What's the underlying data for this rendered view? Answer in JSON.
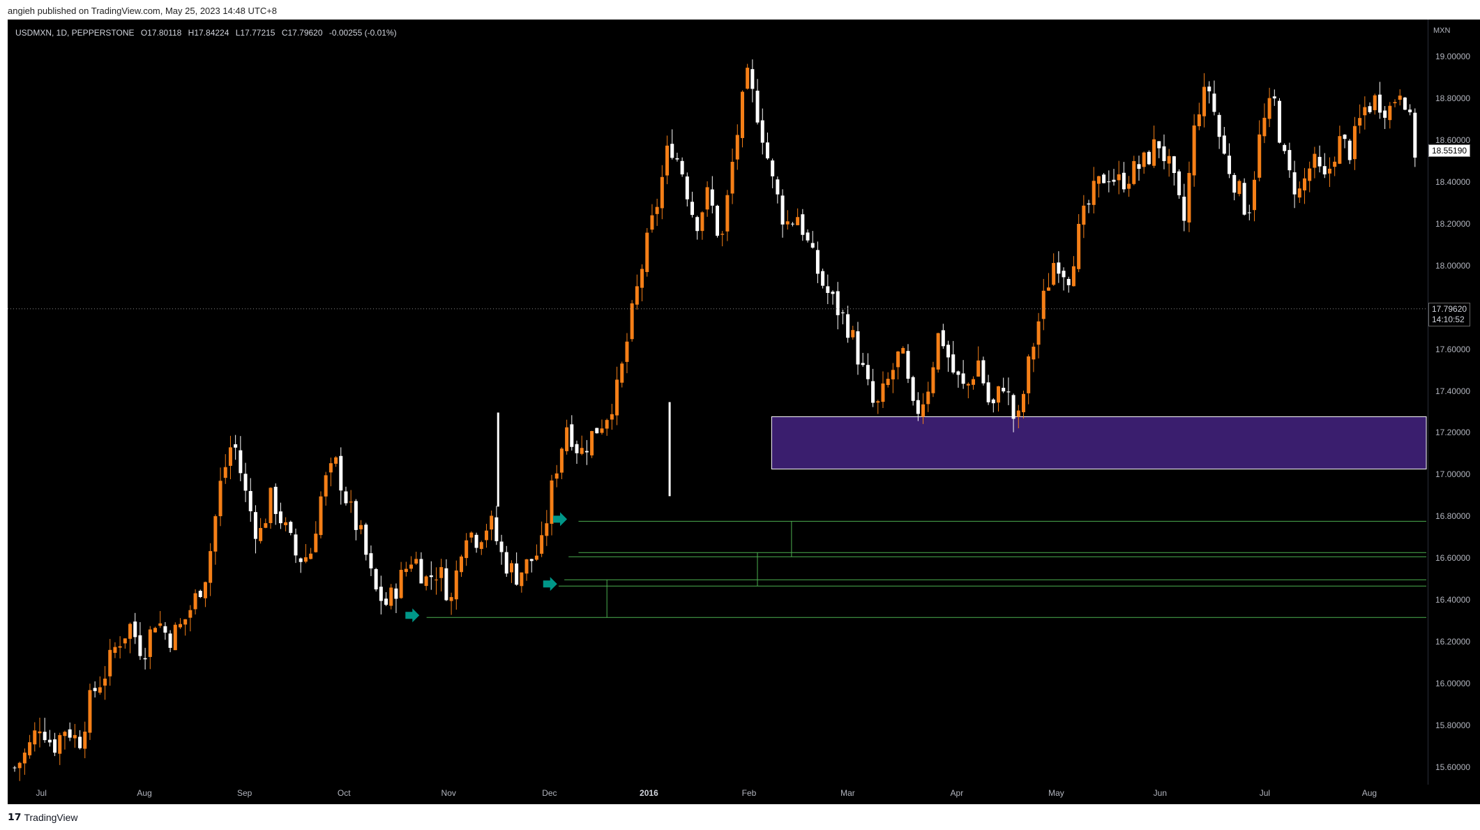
{
  "published": "angieh published on TradingView.com, May 25, 2023 14:48 UTC+8",
  "legend": {
    "symbol": "USDMXN, 1D, PEPPERSTONE",
    "open": "O17.80118",
    "high": "H17.84224",
    "low": "L17.77215",
    "close": "C17.79620",
    "change": "-0.00255 (-0.01%)"
  },
  "currency": "MXN",
  "last_price_tag": "18.55190",
  "current_price_tag": {
    "price": "17.79620",
    "countdown": "14:10:52"
  },
  "footer": {
    "logo_icon": "tradingview-logo-icon",
    "brand": "TradingView"
  },
  "colors": {
    "background": "#000000",
    "up_candle": "#f57f17",
    "down_candle": "#ffffff",
    "zone": "#3a1e6e",
    "zone_border": "#ffffff",
    "level_lines": "#4caf50",
    "arrows": "#009688"
  },
  "chart_data": {
    "type": "candlestick",
    "symbol": "USDMXN",
    "timeframe": "1D",
    "y_axis": {
      "ticks": [
        "19.00000",
        "18.80000",
        "18.60000",
        "18.40000",
        "18.20000",
        "18.00000",
        "17.60000",
        "17.40000",
        "17.20000",
        "17.00000",
        "16.80000",
        "16.60000",
        "16.40000",
        "16.20000",
        "16.00000",
        "15.80000",
        "15.60000"
      ],
      "ylim": [
        15.52,
        19.18
      ]
    },
    "x_axis": {
      "ticks": [
        "Jul",
        "Aug",
        "Sep",
        "Oct",
        "Nov",
        "Dec",
        "2016",
        "Feb",
        "Mar",
        "Apr",
        "May",
        "Jun",
        "Jul",
        "Aug"
      ],
      "bold_tick": "2016"
    },
    "close_path": [
      [
        0,
        15.6
      ],
      [
        10,
        15.68
      ],
      [
        20,
        15.82
      ],
      [
        30,
        15.7
      ],
      [
        40,
        15.8
      ],
      [
        50,
        15.72
      ],
      [
        60,
        15.95
      ],
      [
        70,
        16.05
      ],
      [
        80,
        16.2
      ],
      [
        90,
        16.28
      ],
      [
        100,
        16.15
      ],
      [
        110,
        16.32
      ],
      [
        120,
        16.22
      ],
      [
        130,
        16.28
      ],
      [
        140,
        16.4
      ],
      [
        150,
        16.55
      ],
      [
        160,
        16.95
      ],
      [
        170,
        17.18
      ],
      [
        180,
        16.9
      ],
      [
        190,
        16.7
      ],
      [
        200,
        16.9
      ],
      [
        210,
        16.75
      ],
      [
        220,
        16.6
      ],
      [
        230,
        16.62
      ],
      [
        240,
        16.95
      ],
      [
        250,
        17.05
      ],
      [
        260,
        16.85
      ],
      [
        270,
        16.7
      ],
      [
        280,
        16.45
      ],
      [
        290,
        16.38
      ],
      [
        300,
        16.5
      ],
      [
        310,
        16.62
      ],
      [
        320,
        16.5
      ],
      [
        330,
        16.55
      ],
      [
        340,
        16.4
      ],
      [
        350,
        16.75
      ],
      [
        360,
        16.7
      ],
      [
        370,
        16.78
      ],
      [
        380,
        16.6
      ],
      [
        390,
        16.52
      ],
      [
        400,
        16.58
      ],
      [
        410,
        16.65
      ],
      [
        420,
        17.0
      ],
      [
        430,
        17.25
      ],
      [
        440,
        17.1
      ],
      [
        450,
        17.2
      ],
      [
        460,
        17.28
      ],
      [
        470,
        17.42
      ],
      [
        480,
        17.75
      ],
      [
        490,
        18.05
      ],
      [
        500,
        18.3
      ],
      [
        510,
        18.6
      ],
      [
        520,
        18.45
      ],
      [
        530,
        18.2
      ],
      [
        540,
        18.35
      ],
      [
        550,
        18.1
      ],
      [
        560,
        18.55
      ],
      [
        570,
        18.9
      ],
      [
        580,
        18.7
      ],
      [
        590,
        18.4
      ],
      [
        600,
        18.2
      ],
      [
        610,
        18.25
      ],
      [
        620,
        18.05
      ],
      [
        630,
        17.9
      ],
      [
        640,
        17.8
      ],
      [
        650,
        17.7
      ],
      [
        660,
        17.5
      ],
      [
        670,
        17.3
      ],
      [
        680,
        17.45
      ],
      [
        690,
        17.6
      ],
      [
        700,
        17.28
      ],
      [
        710,
        17.4
      ],
      [
        720,
        17.7
      ],
      [
        730,
        17.5
      ],
      [
        740,
        17.4
      ],
      [
        750,
        17.55
      ],
      [
        760,
        17.3
      ],
      [
        770,
        17.45
      ],
      [
        780,
        17.22
      ],
      [
        790,
        17.55
      ],
      [
        800,
        17.82
      ],
      [
        810,
        18.05
      ],
      [
        820,
        17.95
      ],
      [
        830,
        18.2
      ],
      [
        840,
        18.35
      ],
      [
        850,
        18.45
      ],
      [
        860,
        18.4
      ],
      [
        870,
        18.45
      ],
      [
        880,
        18.5
      ],
      [
        890,
        18.6
      ],
      [
        900,
        18.45
      ],
      [
        910,
        18.2
      ],
      [
        920,
        18.75
      ],
      [
        930,
        18.85
      ],
      [
        940,
        18.55
      ],
      [
        950,
        18.4
      ],
      [
        960,
        18.25
      ],
      [
        970,
        18.65
      ],
      [
        980,
        18.8
      ],
      [
        990,
        18.45
      ],
      [
        1000,
        18.35
      ],
      [
        1010,
        18.5
      ],
      [
        1020,
        18.4
      ],
      [
        1030,
        18.6
      ],
      [
        1040,
        18.55
      ],
      [
        1050,
        18.75
      ],
      [
        1060,
        18.8
      ],
      [
        1070,
        18.75
      ],
      [
        1080,
        18.88
      ],
      [
        1090,
        18.55
      ]
    ],
    "highs": [
      {
        "x": 1175,
        "price": 19.2
      },
      {
        "x": 1830,
        "price": 19.2
      },
      {
        "x": 1195,
        "price": 18.95
      },
      {
        "x": 508,
        "price": 17.35
      },
      {
        "x": 375,
        "price": 17.3
      }
    ],
    "zone": {
      "price_top": 17.28,
      "price_bottom": 17.03,
      "x_start": 0.538
    },
    "levels": [
      {
        "price": 16.78,
        "x_start": 0.402
      },
      {
        "price": 16.63,
        "x_start": 0.402
      },
      {
        "price": 16.61,
        "x_start": 0.395
      },
      {
        "price": 16.5,
        "x_start": 0.392
      },
      {
        "price": 16.47,
        "x_start": 0.388
      },
      {
        "price": 16.32,
        "x_start": 0.295
      }
    ],
    "arrows": [
      {
        "price": 16.33,
        "date_index": 0.285
      },
      {
        "price": 16.48,
        "date_index": 0.382
      },
      {
        "price": 16.79,
        "date_index": 0.389
      }
    ],
    "current_price": 17.7962,
    "last_price": 18.5519
  }
}
